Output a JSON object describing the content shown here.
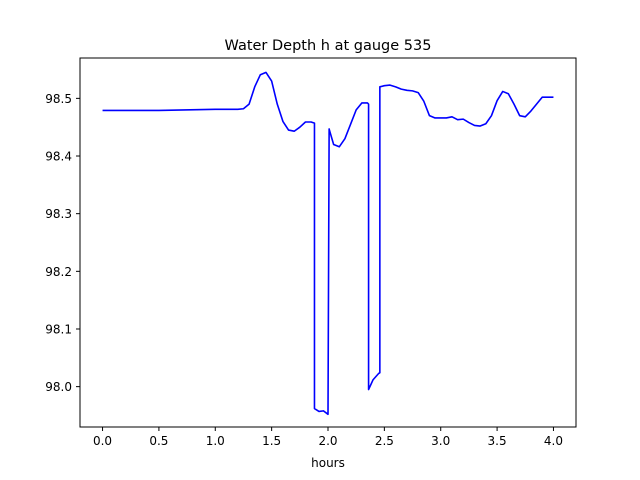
{
  "chart_data": {
    "type": "line",
    "title": "Water Depth h at gauge 535",
    "xlabel": "hours",
    "ylabel": "",
    "xlim": [
      -0.2,
      4.2
    ],
    "ylim": [
      97.93,
      98.57
    ],
    "xticks": [
      0.0,
      0.5,
      1.0,
      1.5,
      2.0,
      2.5,
      3.0,
      3.5,
      4.0
    ],
    "xtick_labels": [
      "0.0",
      "0.5",
      "1.0",
      "1.5",
      "2.0",
      "2.5",
      "3.0",
      "3.5",
      "4.0"
    ],
    "yticks": [
      98.0,
      98.1,
      98.2,
      98.3,
      98.4,
      98.5
    ],
    "ytick_labels": [
      "98.0",
      "98.1",
      "98.2",
      "98.3",
      "98.4",
      "98.5"
    ],
    "grid": false,
    "series": [
      {
        "color": "#0000ff",
        "x": [
          0.0,
          0.5,
          1.0,
          1.2,
          1.25,
          1.3,
          1.35,
          1.4,
          1.45,
          1.5,
          1.55,
          1.6,
          1.65,
          1.7,
          1.75,
          1.8,
          1.85,
          1.88,
          1.88,
          1.92,
          1.96,
          2.0,
          2.01,
          2.02,
          2.05,
          2.1,
          2.15,
          2.2,
          2.25,
          2.3,
          2.35,
          2.36,
          2.36,
          2.4,
          2.45,
          2.46,
          2.46,
          2.5,
          2.55,
          2.6,
          2.65,
          2.7,
          2.75,
          2.8,
          2.85,
          2.9,
          2.95,
          3.0,
          3.05,
          3.1,
          3.15,
          3.2,
          3.25,
          3.3,
          3.35,
          3.4,
          3.45,
          3.5,
          3.55,
          3.6,
          3.65,
          3.7,
          3.75,
          3.8,
          3.85,
          3.9,
          3.95,
          4.0
        ],
        "values": [
          98.479,
          98.479,
          98.481,
          98.481,
          98.482,
          98.49,
          98.52,
          98.541,
          98.545,
          98.53,
          98.49,
          98.46,
          98.445,
          98.443,
          98.45,
          98.459,
          98.459,
          98.457,
          97.962,
          97.957,
          97.958,
          97.952,
          98.447,
          98.44,
          98.42,
          98.416,
          98.43,
          98.455,
          98.48,
          98.492,
          98.492,
          98.49,
          97.995,
          98.012,
          98.023,
          98.024,
          98.52,
          98.522,
          98.523,
          98.52,
          98.516,
          98.514,
          98.513,
          98.51,
          98.495,
          98.47,
          98.466,
          98.466,
          98.466,
          98.468,
          98.463,
          98.464,
          98.458,
          98.453,
          98.452,
          98.456,
          98.47,
          98.496,
          98.512,
          98.508,
          98.49,
          98.47,
          98.468,
          98.478,
          98.49,
          98.502,
          98.502,
          98.502
        ]
      }
    ]
  }
}
